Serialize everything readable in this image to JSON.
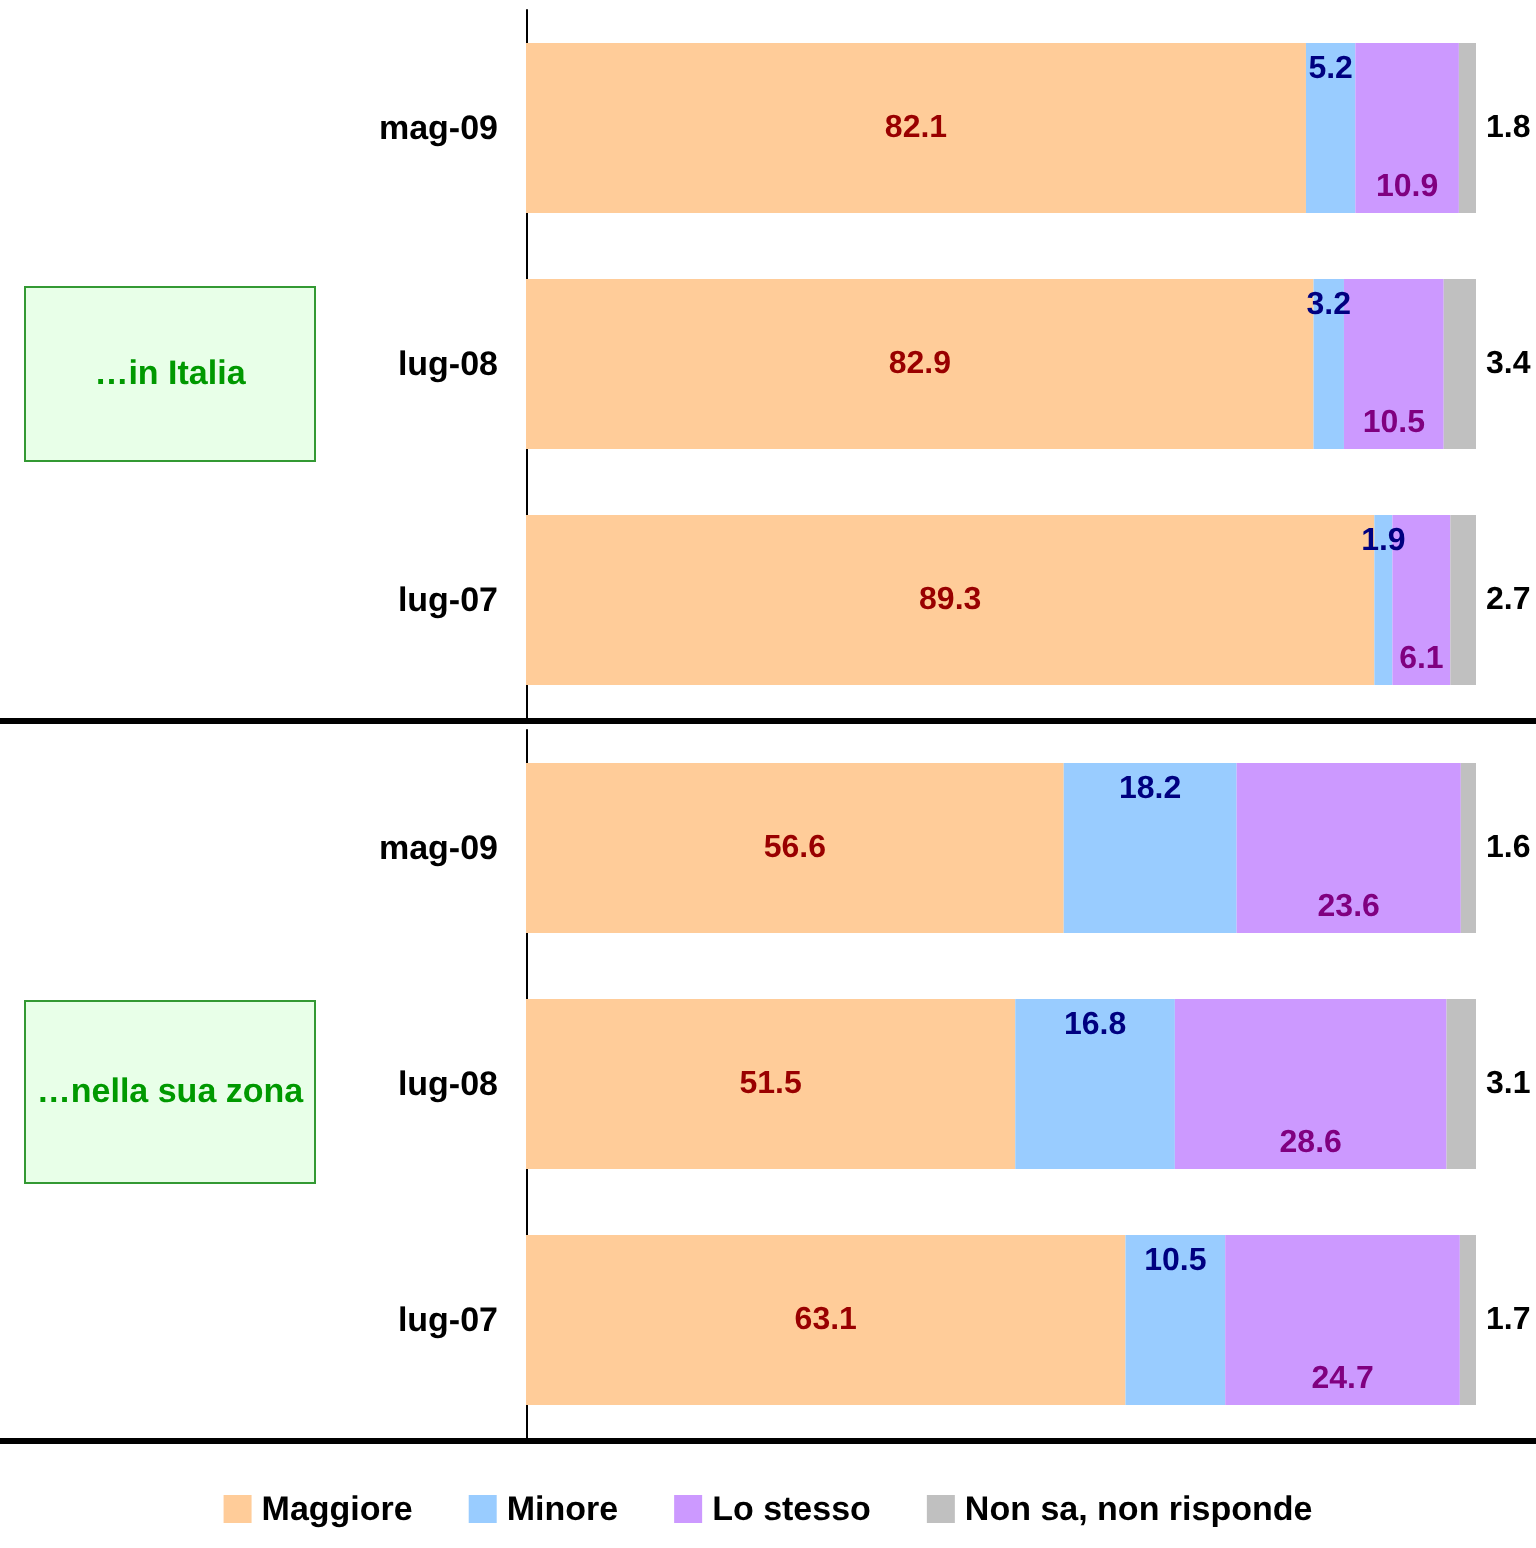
{
  "chart_data": [
    {
      "type": "bar",
      "orientation": "horizontal",
      "stacked": true,
      "data_labels": true,
      "tick_labels": "y",
      "xlim": [
        0,
        100
      ],
      "legend": false,
      "annotations": [
        "…in Italia"
      ],
      "categories": [
        "mag-09",
        "lug-08",
        "lug-07"
      ],
      "series": [
        {
          "color": "#ffcc99",
          "values": [
            82.1,
            82.9,
            89.3
          ]
        },
        {
          "color": "#99ccff",
          "values": [
            5.2,
            3.2,
            1.9
          ]
        },
        {
          "color": "#cc99ff",
          "values": [
            10.9,
            10.5,
            6.1
          ]
        },
        {
          "color": "#c0c0c0",
          "values": [
            1.8,
            3.4,
            2.7
          ]
        }
      ]
    },
    {
      "type": "bar",
      "orientation": "horizontal",
      "stacked": true,
      "data_labels": true,
      "tick_labels": "y",
      "xlim": [
        0,
        100
      ],
      "legend": "bottom",
      "annotations": [
        "…nella sua zona"
      ],
      "categories": [
        "mag-09",
        "lug-08",
        "lug-07"
      ],
      "series": [
        {
          "name": "Maggiore",
          "color": "#ffcc99",
          "values": [
            56.6,
            51.5,
            63.1
          ]
        },
        {
          "name": "Minore",
          "color": "#99ccff",
          "values": [
            18.2,
            16.8,
            10.5
          ]
        },
        {
          "name": "Lo stesso",
          "color": "#cc99ff",
          "values": [
            23.6,
            28.6,
            24.7
          ]
        },
        {
          "name": "Non sa, non risponde",
          "color": "#c0c0c0",
          "values": [
            1.6,
            3.1,
            1.7
          ]
        }
      ]
    }
  ]
}
